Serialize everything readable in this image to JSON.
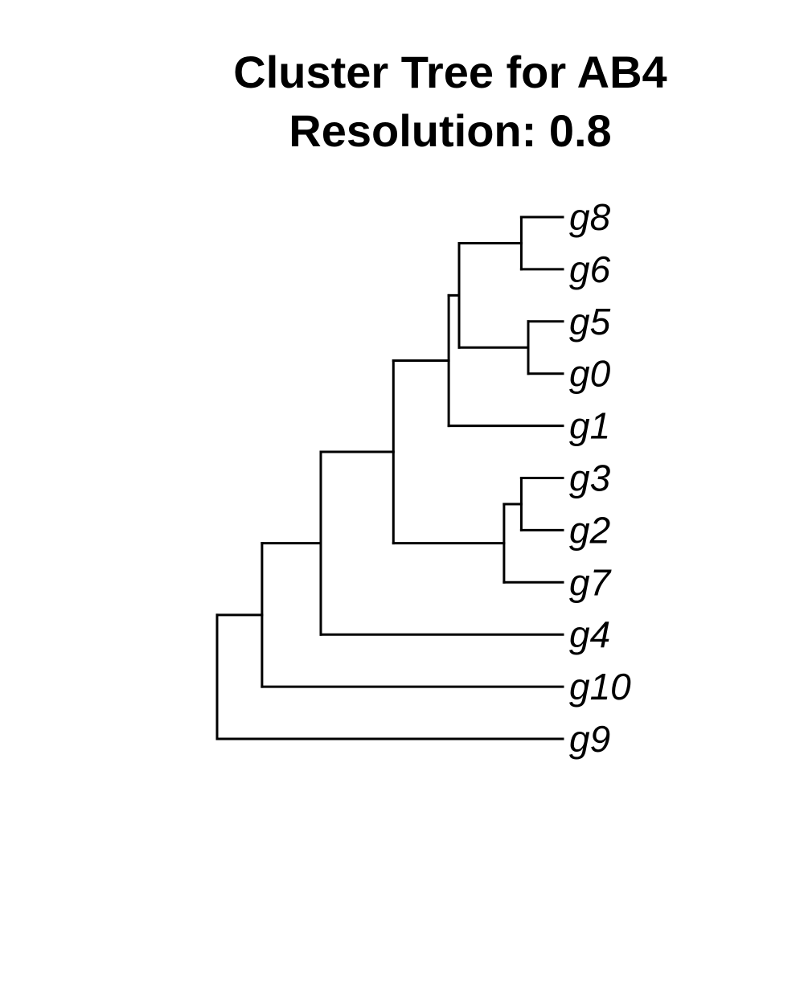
{
  "title": {
    "line1": "Cluster Tree for AB4",
    "line2": "Resolution: 0.8"
  },
  "tree": {
    "type": "dendrogram",
    "orientation": "rooted-left",
    "label_style": "italic",
    "line_color": "#000000",
    "tips": [
      "g8",
      "g6",
      "g5",
      "g0",
      "g1",
      "g3",
      "g2",
      "g7",
      "g4",
      "g10",
      "g9"
    ],
    "root": {
      "depth": 0,
      "children": [
        {
          "depth": 0.13,
          "children": [
            {
              "depth": 0.3,
              "children": [
                {
                  "depth": 0.51,
                  "children": [
                    {
                      "depth": 0.67,
                      "children": [
                        {
                          "depth": 0.7,
                          "children": [
                            {
                              "depth": 0.88,
                              "children": [
                                {
                                  "label": "g8"
                                },
                                {
                                  "label": "g6"
                                }
                              ]
                            },
                            {
                              "depth": 0.9,
                              "children": [
                                {
                                  "label": "g5"
                                },
                                {
                                  "label": "g0"
                                }
                              ]
                            }
                          ]
                        },
                        {
                          "label": "g1"
                        }
                      ]
                    },
                    {
                      "depth": 0.83,
                      "children": [
                        {
                          "depth": 0.88,
                          "children": [
                            {
                              "label": "g3"
                            },
                            {
                              "label": "g2"
                            }
                          ]
                        },
                        {
                          "label": "g7"
                        }
                      ]
                    }
                  ]
                },
                {
                  "label": "g4"
                }
              ]
            },
            {
              "label": "g10"
            }
          ]
        },
        {
          "label": "g9"
        }
      ]
    }
  }
}
